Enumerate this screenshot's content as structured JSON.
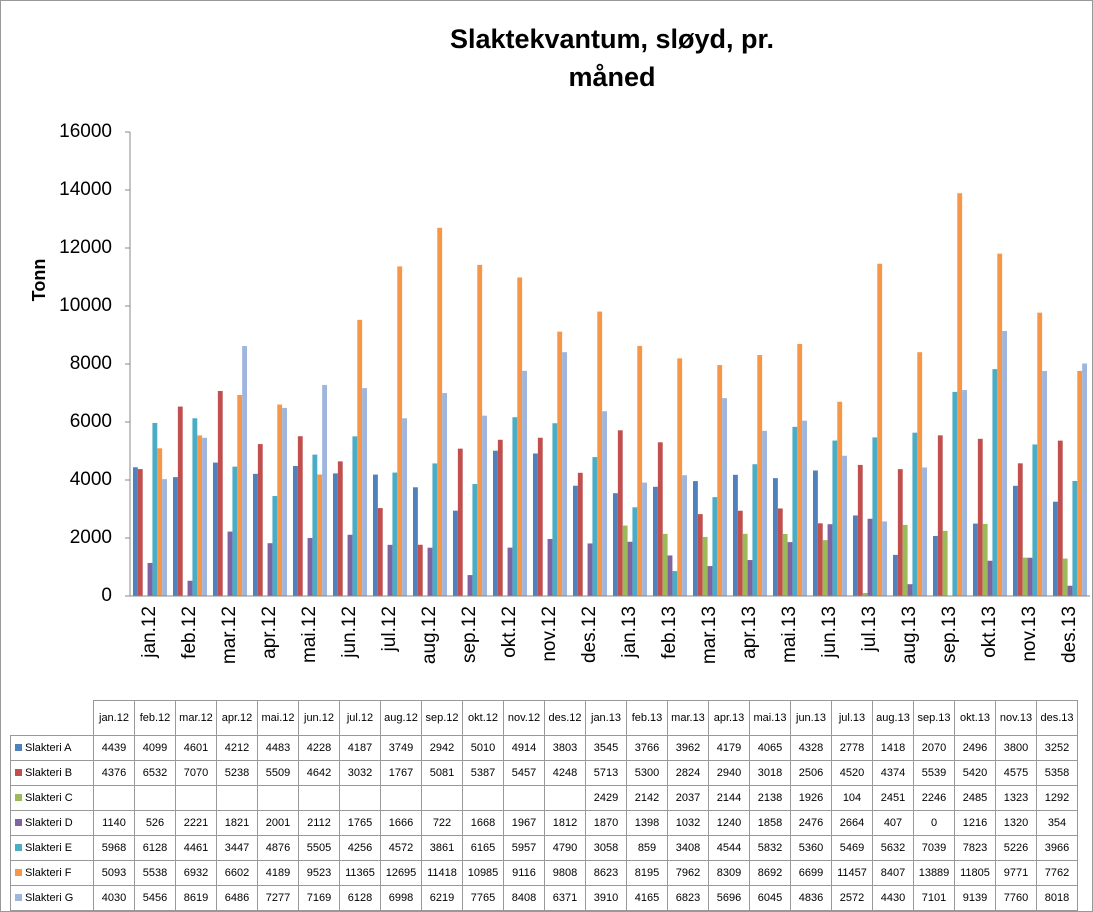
{
  "chart_data": {
    "type": "bar",
    "title": "Slaktekvantum, sløyd, pr. måned",
    "ylabel": "Tonn",
    "categories": [
      "jan.12",
      "feb.12",
      "mar.12",
      "apr.12",
      "mai.12",
      "jun.12",
      "jul.12",
      "aug.12",
      "sep.12",
      "okt.12",
      "nov.12",
      "des.12",
      "jan.13",
      "feb.13",
      "mar.13",
      "apr.13",
      "mai.13",
      "jun.13",
      "jul.13",
      "aug.13",
      "sep.13",
      "okt.13",
      "nov.13",
      "des.13"
    ],
    "series": [
      {
        "name": "Slakteri A",
        "color": "#4f81bd",
        "values": [
          4439,
          4099,
          4601,
          4212,
          4483,
          4228,
          4187,
          3749,
          2942,
          5010,
          4914,
          3803,
          3545,
          3766,
          3962,
          4179,
          4065,
          4328,
          2778,
          1418,
          2070,
          2496,
          3800,
          3252
        ]
      },
      {
        "name": "Slakteri B",
        "color": "#c0504d",
        "values": [
          4376,
          6532,
          7070,
          5238,
          5509,
          4642,
          3032,
          1767,
          5081,
          5387,
          5457,
          4248,
          5713,
          5300,
          2824,
          2940,
          3018,
          2506,
          4520,
          4374,
          5539,
          5420,
          4575,
          5358
        ]
      },
      {
        "name": "Slakteri C",
        "color": "#9bbb59",
        "values": [
          null,
          null,
          null,
          null,
          null,
          null,
          null,
          null,
          null,
          null,
          null,
          null,
          2429,
          2142,
          2037,
          2144,
          2138,
          1926,
          104,
          2451,
          2246,
          2485,
          1323,
          1292
        ]
      },
      {
        "name": "Slakteri D",
        "color": "#8064a2",
        "values": [
          1140,
          526,
          2221,
          1821,
          2001,
          2112,
          1765,
          1666,
          722,
          1668,
          1967,
          1812,
          1870,
          1398,
          1032,
          1240,
          1858,
          2476,
          2664,
          407,
          0,
          1216,
          1320,
          354
        ]
      },
      {
        "name": "Slakteri E",
        "color": "#4bacc6",
        "values": [
          5968,
          6128,
          4461,
          3447,
          4876,
          5505,
          4256,
          4572,
          3861,
          6165,
          5957,
          4790,
          3058,
          859,
          3408,
          4544,
          5832,
          5360,
          5469,
          5632,
          7039,
          7823,
          5226,
          3966
        ]
      },
      {
        "name": "Slakteri F",
        "color": "#f79646",
        "values": [
          5093,
          5538,
          6932,
          6602,
          4189,
          9523,
          11365,
          12695,
          11418,
          10985,
          9116,
          9808,
          8623,
          8195,
          7962,
          8309,
          8692,
          6699,
          11457,
          8407,
          13889,
          11805,
          9771,
          7762
        ]
      },
      {
        "name": "Slakteri G",
        "color": "#9fb5de",
        "values": [
          4030,
          5456,
          8619,
          6486,
          7277,
          7169,
          6128,
          6998,
          6219,
          7765,
          8408,
          6371,
          3910,
          4165,
          6823,
          5696,
          6045,
          4836,
          2572,
          4430,
          7101,
          9139,
          7760,
          8018
        ]
      }
    ],
    "ylim": [
      0,
      16000
    ],
    "yticks": [
      0,
      2000,
      4000,
      6000,
      8000,
      10000,
      12000,
      14000,
      16000
    ],
    "grid": false
  }
}
